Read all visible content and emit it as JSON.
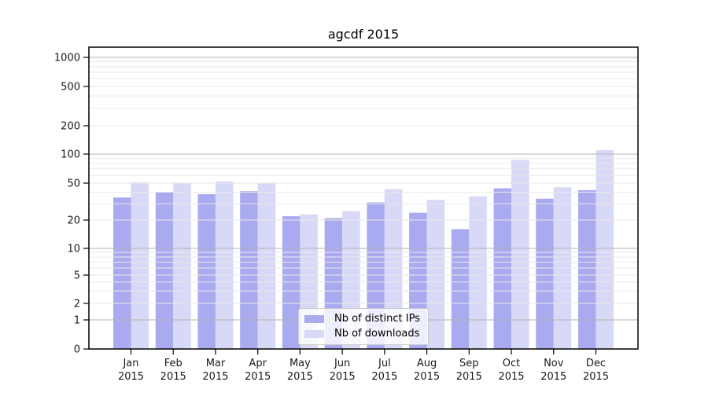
{
  "title": "agcdf 2015",
  "legend": {
    "items": [
      {
        "label": "Nb of distinct IPs",
        "color": "#aaaaf0"
      },
      {
        "label": "Nb of downloads",
        "color": "#d8d8f7"
      }
    ]
  },
  "colors": {
    "ips_bar": "#aaaaf0",
    "downloads_bar": "#d8d8f7",
    "major_gridline": "#b3b3b3",
    "minor_gridline": "#e9e9e9",
    "axis": "#000000",
    "tick_label": "#1a1a1a",
    "background": "#ffffff"
  },
  "chart_data": {
    "type": "bar",
    "title": "agcdf 2015",
    "categories": [
      "Jan",
      "Feb",
      "Mar",
      "Apr",
      "May",
      "Jun",
      "Jul",
      "Aug",
      "Sep",
      "Oct",
      "Nov",
      "Dec"
    ],
    "x_sublabel_year": "2015",
    "series": [
      {
        "name": "Nb of distinct IPs",
        "color": "#aaaaf0",
        "values": [
          35,
          40,
          38,
          41,
          22,
          21,
          31,
          24,
          16,
          44,
          34,
          42
        ]
      },
      {
        "name": "Nb of downloads",
        "color": "#d8d8f7",
        "values": [
          51,
          50,
          52,
          50,
          23,
          25,
          43,
          33,
          36,
          87,
          45,
          110
        ]
      }
    ],
    "xlabel": "",
    "ylabel": "",
    "yscale": "symlog",
    "y_tick_labels": [
      "0",
      "1",
      "2",
      "5",
      "10",
      "20",
      "50",
      "100",
      "200",
      "500",
      "1000"
    ],
    "y_ticks": [
      0,
      1,
      2,
      5,
      10,
      20,
      50,
      100,
      200,
      500,
      1000
    ],
    "ylim": [
      0,
      1300
    ],
    "grid": true,
    "grid_on_top_of_bars": true,
    "legend_position": "lower-center"
  }
}
